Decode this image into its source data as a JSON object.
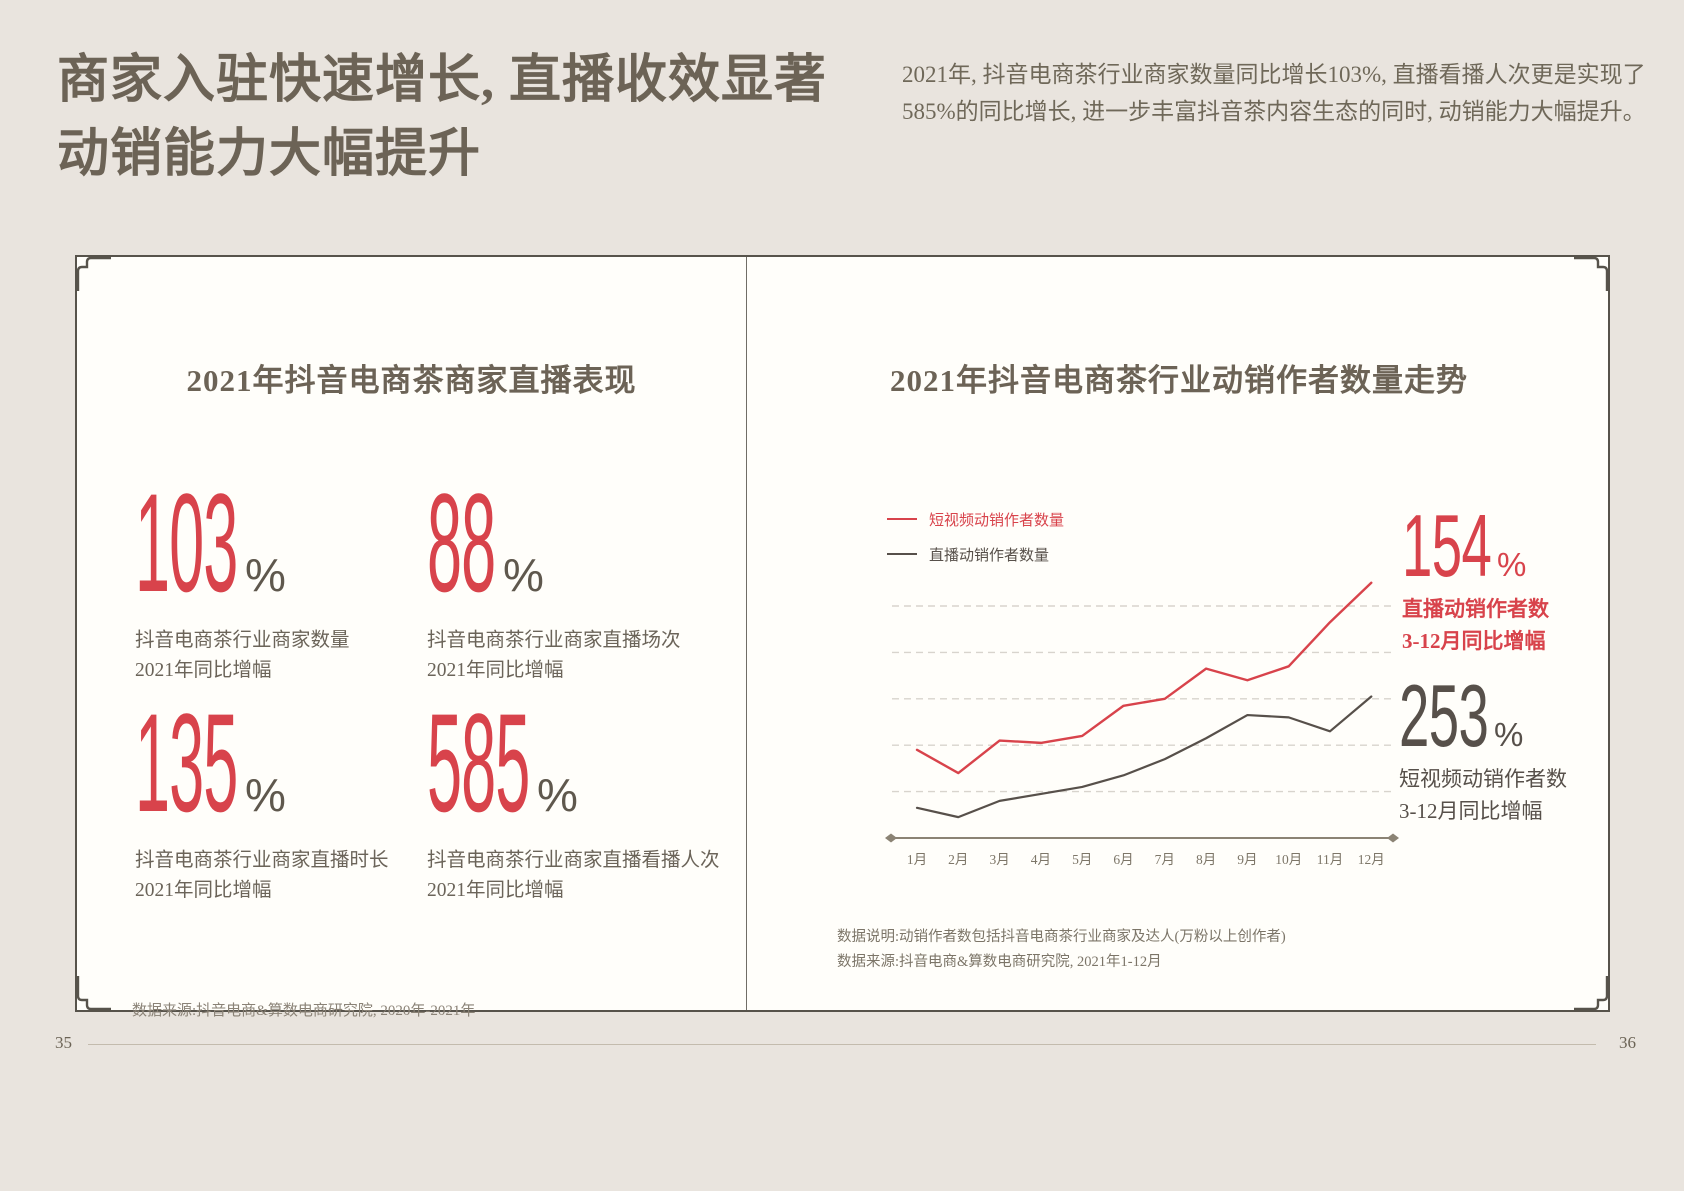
{
  "colors": {
    "accent_red": "#d8434b",
    "ink_dark": "#57504a",
    "heading": "#6c6356",
    "page_bg": "#e9e4de",
    "panel_bg": "#fffefa",
    "gridline": "#d8d4cd",
    "axis": "#8b8374",
    "tick_label": "#7d7668"
  },
  "header": {
    "title_line1": "商家入驻快速增长, 直播收效显著",
    "title_line2": "动销能力大幅提升",
    "intro_line1": "2021年, 抖音电商茶行业商家数量同比增长103%, 直播看播人次更是实现了",
    "intro_line2": "585%的同比增长, 进一步丰富抖音茶内容生态的同时, 动销能力大幅提升。"
  },
  "left_panel": {
    "title": "2021年抖音电商茶商家直播表现",
    "stats": [
      {
        "value": "103",
        "unit": "%",
        "caption_line1": "抖音电商茶行业商家数量",
        "caption_line2": "2021年同比增幅"
      },
      {
        "value": "88",
        "unit": "%",
        "caption_line1": "抖音电商茶行业商家直播场次",
        "caption_line2": "2021年同比增幅"
      },
      {
        "value": "135",
        "unit": "%",
        "caption_line1": "抖音电商茶行业商家直播时长",
        "caption_line2": "2021年同比增幅"
      },
      {
        "value": "585",
        "unit": "%",
        "caption_line1": "抖音电商茶行业商家直播看播人次",
        "caption_line2": "2021年同比增幅"
      }
    ],
    "source": "数据来源:抖音电商&算数电商研究院, 2020年-2021年"
  },
  "right_panel": {
    "title": "2021年抖音电商茶行业动销作者数量走势",
    "highlights": [
      {
        "value": "154",
        "unit": "%",
        "caption_line1": "直播动销作者数",
        "caption_line2": "3-12月同比增幅",
        "color": "#d8434b"
      },
      {
        "value": "253",
        "unit": "%",
        "caption_line1": "短视频动销作者数",
        "caption_line2": "3-12月同比增幅",
        "color": "#57504a"
      }
    ],
    "note_line1": "数据说明:动销作者数包括抖音电商茶行业商家及达人(万粉以上创作者)",
    "note_line2": "数据来源:抖音电商&算数电商研究院, 2021年1-12月"
  },
  "chart_data": {
    "type": "line",
    "x": [
      "1月",
      "2月",
      "3月",
      "4月",
      "5月",
      "6月",
      "7月",
      "8月",
      "9月",
      "10月",
      "11月",
      "12月"
    ],
    "series": [
      {
        "name": "短视频动销作者数量",
        "color": "#d8434b",
        "values": [
          38,
          28,
          42,
          41,
          44,
          57,
          60,
          73,
          68,
          74,
          93,
          110
        ]
      },
      {
        "name": "直播动销作者数量",
        "color": "#57504a",
        "values": [
          13,
          9,
          16,
          19,
          22,
          27,
          34,
          43,
          53,
          52,
          46,
          61
        ]
      }
    ],
    "title": "2021年抖音电商茶行业动销作者数量走势",
    "xlabel": "",
    "ylabel": "",
    "ylim": [
      0,
      120
    ],
    "y_axis_labeled": false,
    "gridline_values": [
      20,
      40,
      60,
      80,
      100
    ],
    "grid_style": "dashed",
    "legend_position": "top-left"
  },
  "footer": {
    "left_page_number": "35",
    "right_page_number": "36"
  }
}
